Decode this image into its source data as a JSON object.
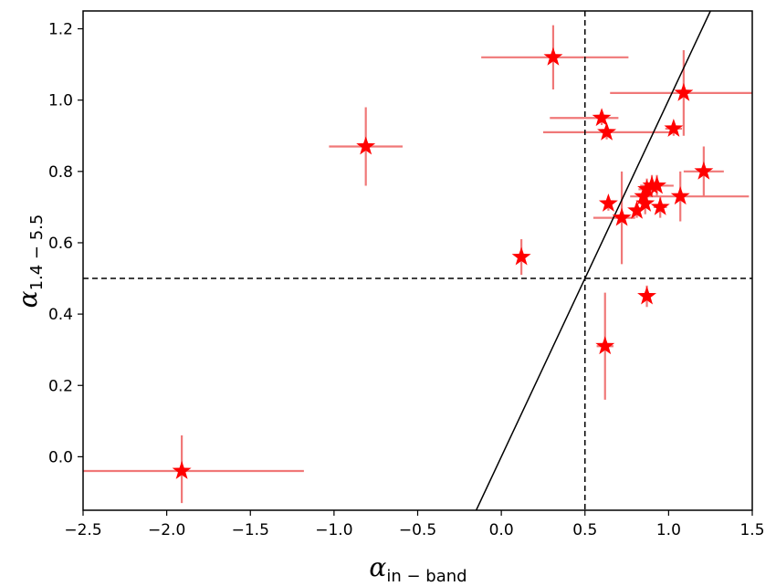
{
  "chart_data": {
    "type": "scatter",
    "xlabel": {
      "symbol": "α",
      "subscript": "in − band"
    },
    "ylabel": {
      "symbol": "α",
      "subscript": "1.4 − 5.5"
    },
    "xlim": [
      -2.5,
      1.5
    ],
    "ylim": [
      -0.15,
      1.25
    ],
    "xticks": [
      -2.5,
      -2.0,
      -1.5,
      -1.0,
      -0.5,
      0.0,
      0.5,
      1.0,
      1.5
    ],
    "xtick_labels": [
      "−2.5",
      "−2.0",
      "−1.5",
      "−1.0",
      "−0.5",
      "0.0",
      "0.5",
      "1.0",
      "1.5"
    ],
    "yticks": [
      0.0,
      0.2,
      0.4,
      0.6,
      0.8,
      1.0,
      1.2
    ],
    "ytick_labels": [
      "0.0",
      "0.2",
      "0.4",
      "0.6",
      "0.8",
      "1.0",
      "1.2"
    ],
    "grid": false,
    "marker": "star",
    "colors": {
      "marker": "#ff0000",
      "errorbar": "#f07878",
      "axes": "#000000"
    },
    "reference_lines": [
      {
        "kind": "vertical",
        "value": 0.5,
        "style": "dashed"
      },
      {
        "kind": "horizontal",
        "value": 0.5,
        "style": "dashed"
      },
      {
        "kind": "line",
        "from": [
          -0.15,
          -0.15
        ],
        "to": [
          1.25,
          1.25
        ],
        "style": "solid"
      }
    ],
    "points": [
      {
        "x": -1.91,
        "y": -0.04,
        "xerr": [
          0.59,
          0.73
        ],
        "yerr": [
          0.09,
          0.1
        ]
      },
      {
        "x": -0.81,
        "y": 0.87,
        "xerr": [
          0.22,
          0.22
        ],
        "yerr": [
          0.11,
          0.11
        ]
      },
      {
        "x": 0.12,
        "y": 0.56,
        "xerr": [
          0.0,
          0.0
        ],
        "yerr": [
          0.05,
          0.05
        ]
      },
      {
        "x": 0.31,
        "y": 1.12,
        "xerr": [
          0.43,
          0.45
        ],
        "yerr": [
          0.09,
          0.09
        ]
      },
      {
        "x": 0.6,
        "y": 0.95,
        "xerr": [
          0.31,
          0.1
        ],
        "yerr": [
          0.02,
          0.02
        ]
      },
      {
        "x": 0.63,
        "y": 0.91,
        "xerr": [
          0.38,
          0.41
        ],
        "yerr": [
          0.02,
          0.02
        ]
      },
      {
        "x": 0.62,
        "y": 0.31,
        "xerr": [
          0.05,
          0.05
        ],
        "yerr": [
          0.15,
          0.15
        ]
      },
      {
        "x": 0.64,
        "y": 0.71,
        "xerr": [
          0.0,
          0.0
        ],
        "yerr": [
          0.02,
          0.02
        ]
      },
      {
        "x": 0.72,
        "y": 0.67,
        "xerr": [
          0.17,
          0.08
        ],
        "yerr": [
          0.13,
          0.13
        ]
      },
      {
        "x": 0.81,
        "y": 0.69,
        "xerr": [
          0.0,
          0.0
        ],
        "yerr": [
          0.02,
          0.02
        ]
      },
      {
        "x": 0.85,
        "y": 0.73,
        "xerr": [
          0.08,
          0.0
        ],
        "yerr": [
          0.03,
          0.03
        ]
      },
      {
        "x": 0.86,
        "y": 0.71,
        "xerr": [
          0.0,
          0.0
        ],
        "yerr": [
          0.03,
          0.03
        ]
      },
      {
        "x": 0.87,
        "y": 0.45,
        "xerr": [
          0.02,
          0.02
        ],
        "yerr": [
          0.03,
          0.03
        ]
      },
      {
        "x": 0.87,
        "y": 0.75,
        "xerr": [
          0.05,
          0.05
        ],
        "yerr": [
          0.03,
          0.03
        ]
      },
      {
        "x": 0.9,
        "y": 0.76,
        "xerr": [
          0.05,
          0.1
        ],
        "yerr": [
          0.03,
          0.03
        ]
      },
      {
        "x": 0.93,
        "y": 0.76,
        "xerr": [
          0.1,
          0.1
        ],
        "yerr": [
          0.03,
          0.03
        ]
      },
      {
        "x": 0.95,
        "y": 0.7,
        "xerr": [
          0.04,
          0.04
        ],
        "yerr": [
          0.03,
          0.03
        ]
      },
      {
        "x": 1.03,
        "y": 0.92,
        "xerr": [
          0.05,
          0.05
        ],
        "yerr": [
          0.02,
          0.02
        ]
      },
      {
        "x": 1.07,
        "y": 0.73,
        "xerr": [
          0.22,
          0.41
        ],
        "yerr": [
          0.07,
          0.07
        ]
      },
      {
        "x": 1.09,
        "y": 1.02,
        "xerr": [
          0.44,
          0.41
        ],
        "yerr": [
          0.12,
          0.12
        ]
      },
      {
        "x": 1.21,
        "y": 0.8,
        "xerr": [
          0.12,
          0.12
        ],
        "yerr": [
          0.07,
          0.07
        ]
      }
    ]
  }
}
